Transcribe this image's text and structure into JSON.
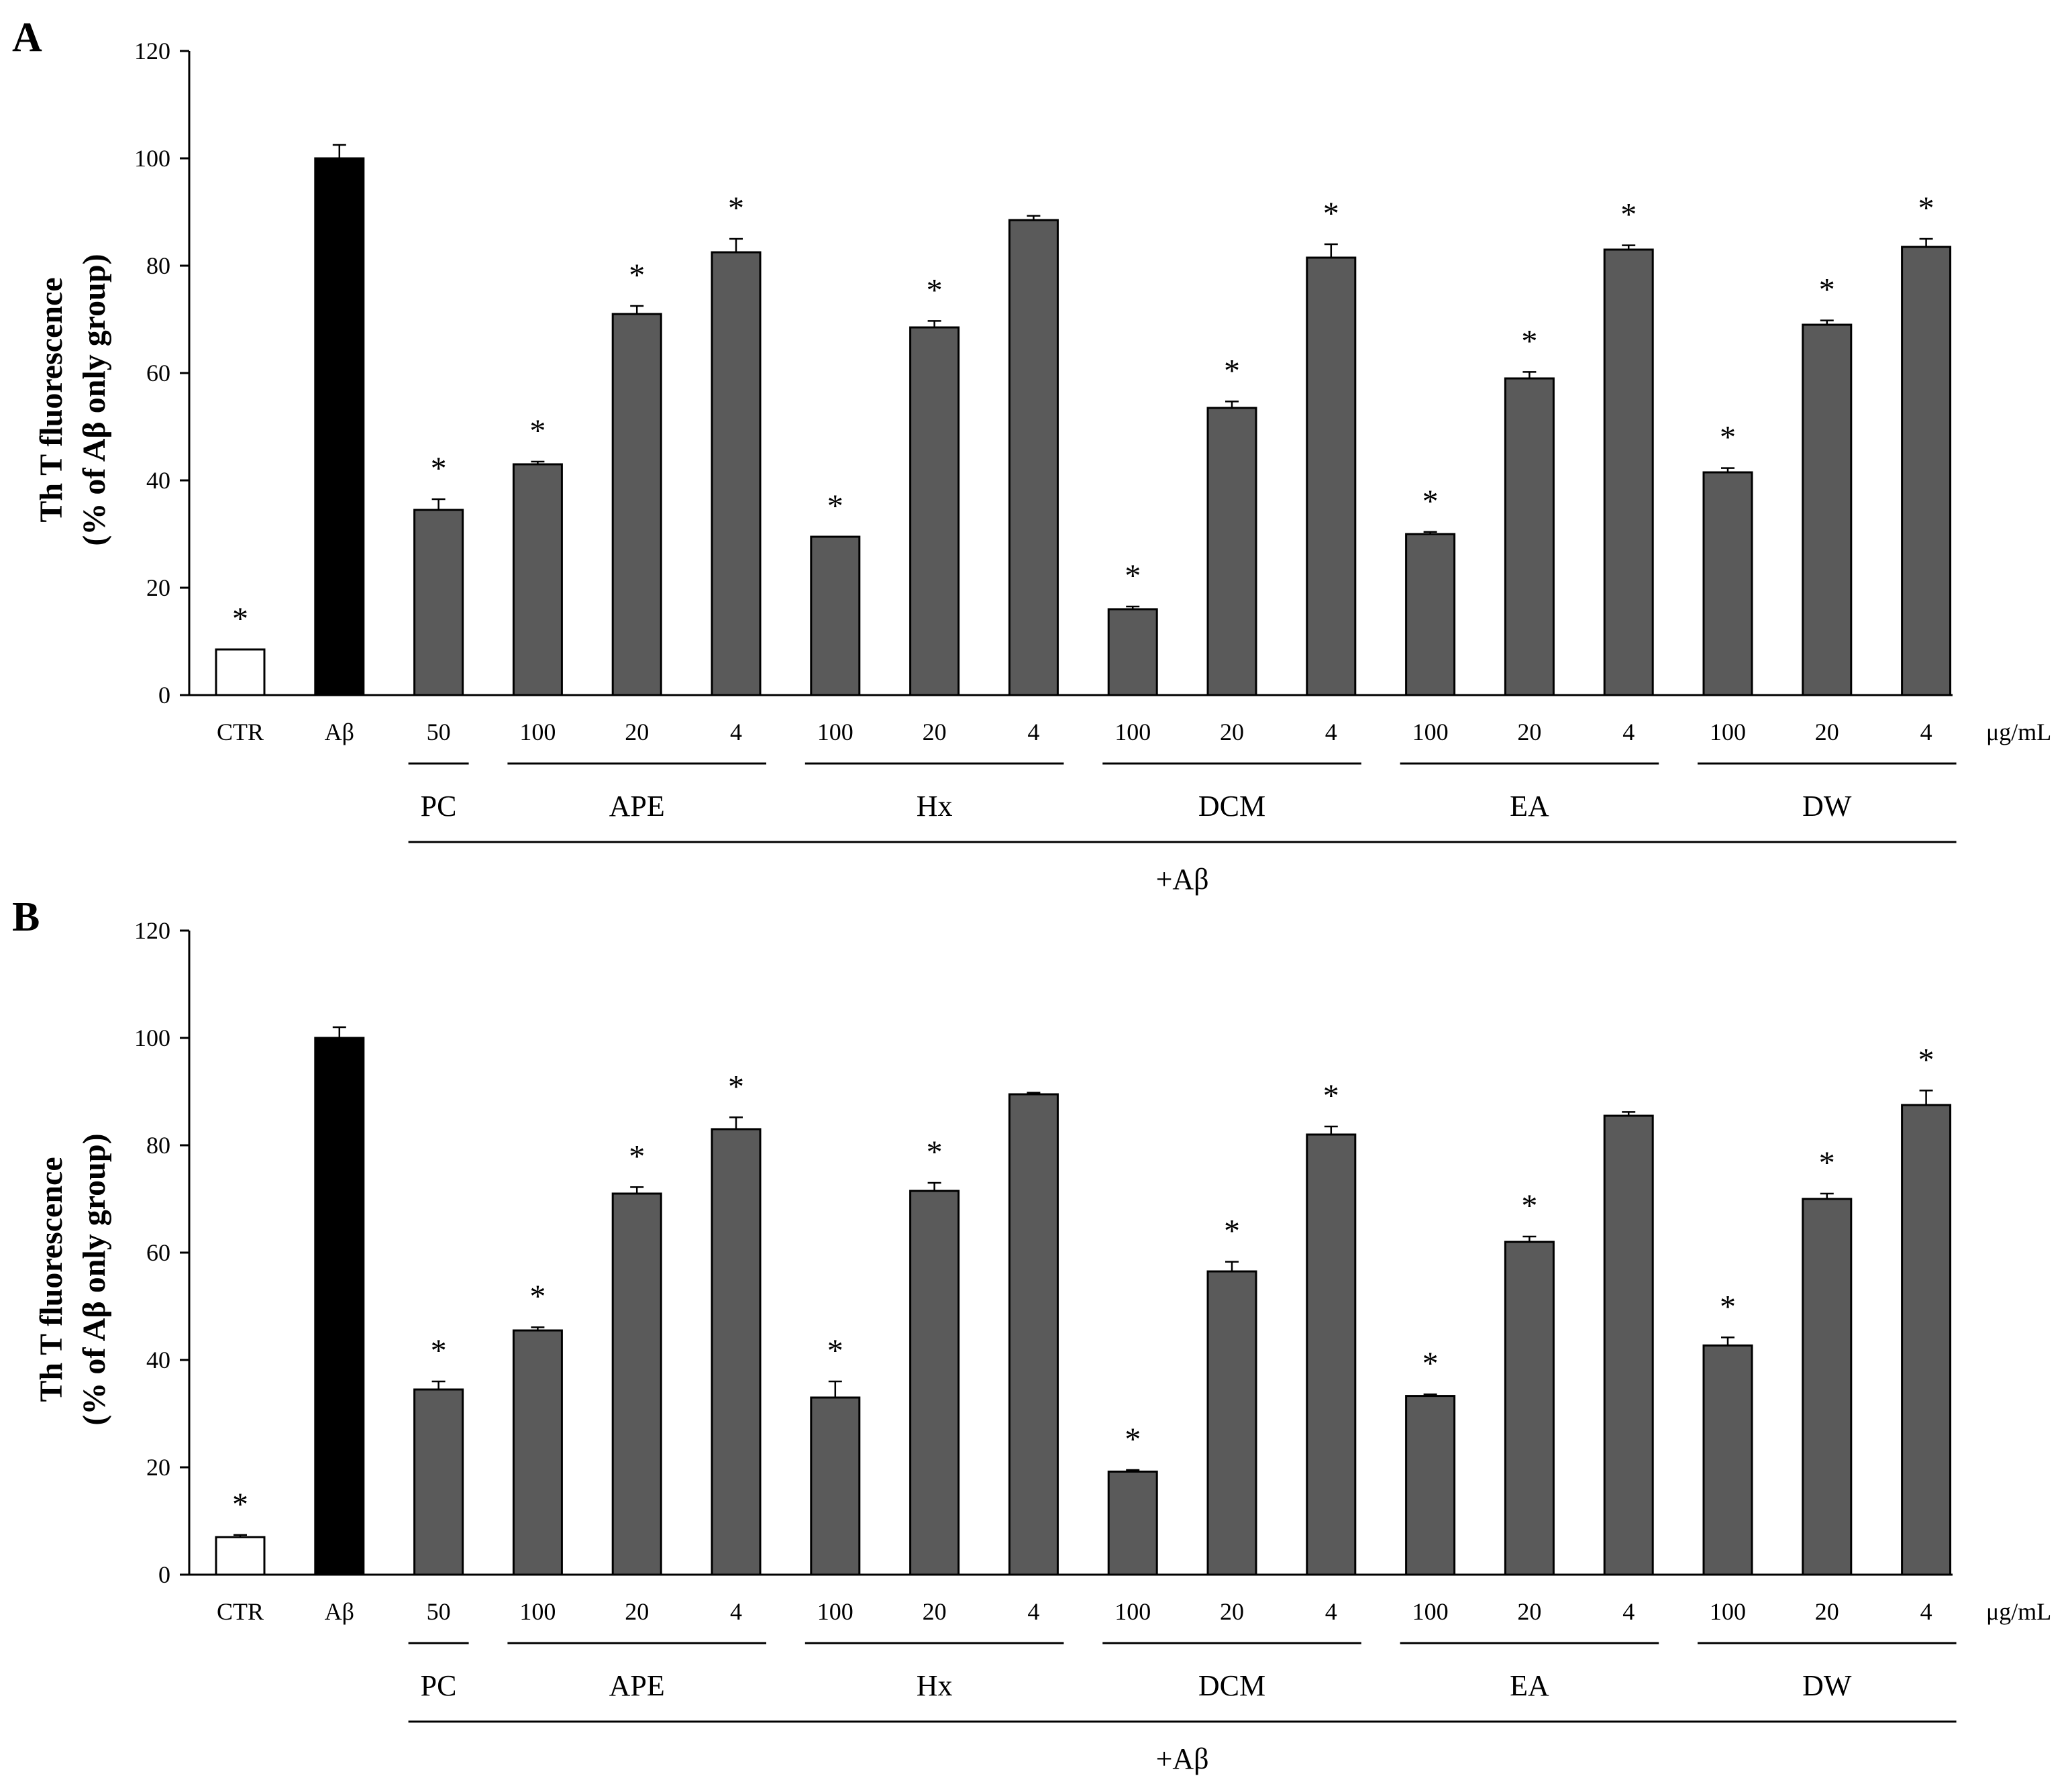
{
  "chart_data": [
    {
      "panel": "A",
      "type": "bar",
      "ylabel_line1": "Th T fluorescence",
      "ylabel_line2": "(% of Aβ only group)",
      "ylim": [
        0,
        120
      ],
      "yticks": [
        0,
        20,
        40,
        60,
        80,
        100,
        120
      ],
      "grid": false,
      "unit_label": "μg/mL",
      "categories": [
        "CTR",
        "Aβ",
        "50",
        "100",
        "20",
        "4",
        "100",
        "20",
        "4",
        "100",
        "20",
        "4",
        "100",
        "20",
        "4",
        "100",
        "20",
        "4"
      ],
      "values": [
        8.5,
        100,
        34.5,
        43,
        71,
        82.5,
        29.5,
        68.5,
        88.5,
        16,
        53.5,
        81.5,
        30,
        59,
        83,
        41.5,
        69,
        83.5
      ],
      "errors": [
        0,
        2.5,
        2,
        0.5,
        1.5,
        2.5,
        0,
        1.2,
        0.8,
        0.5,
        1.2,
        2.5,
        0.4,
        1.2,
        0.8,
        0.8,
        0.8,
        1.5
      ],
      "bar_colors": [
        "#ffffff",
        "#000000",
        "#5a5a5a",
        "#5a5a5a",
        "#5a5a5a",
        "#5a5a5a",
        "#5a5a5a",
        "#5a5a5a",
        "#5a5a5a",
        "#5a5a5a",
        "#5a5a5a",
        "#5a5a5a",
        "#5a5a5a",
        "#5a5a5a",
        "#5a5a5a",
        "#5a5a5a",
        "#5a5a5a",
        "#5a5a5a"
      ],
      "significance": [
        true,
        false,
        true,
        true,
        true,
        true,
        true,
        true,
        false,
        true,
        true,
        true,
        true,
        true,
        true,
        true,
        true,
        true
      ],
      "significance_mark": "*",
      "groups": [
        {
          "label": "PC",
          "start": 2,
          "end": 2
        },
        {
          "label": "APE",
          "start": 3,
          "end": 5
        },
        {
          "label": "Hx",
          "start": 6,
          "end": 8
        },
        {
          "label": "DCM",
          "start": 9,
          "end": 11
        },
        {
          "label": "EA",
          "start": 12,
          "end": 14
        },
        {
          "label": "DW",
          "start": 15,
          "end": 17
        }
      ],
      "treatment_label": "+Aβ"
    },
    {
      "panel": "B",
      "type": "bar",
      "ylabel_line1": "Th T fluorescence",
      "ylabel_line2": "(% of Aβ only group)",
      "ylim": [
        0,
        120
      ],
      "yticks": [
        0,
        20,
        40,
        60,
        80,
        100,
        120
      ],
      "grid": false,
      "unit_label": "μg/mL",
      "categories": [
        "CTR",
        "Aβ",
        "50",
        "100",
        "20",
        "4",
        "100",
        "20",
        "4",
        "100",
        "20",
        "4",
        "100",
        "20",
        "4",
        "100",
        "20",
        "4"
      ],
      "values": [
        7,
        100,
        34.5,
        45.5,
        71,
        83,
        33,
        71.5,
        89.5,
        19.2,
        56.5,
        82,
        33.3,
        62,
        85.5,
        42.7,
        70,
        87.5
      ],
      "errors": [
        0.4,
        2,
        1.5,
        0.6,
        1.2,
        2.2,
        3,
        1.5,
        0.3,
        0.3,
        1.8,
        1.5,
        0.3,
        1,
        0.7,
        1.5,
        1,
        2.7
      ],
      "bar_colors": [
        "#ffffff",
        "#000000",
        "#5a5a5a",
        "#5a5a5a",
        "#5a5a5a",
        "#5a5a5a",
        "#5a5a5a",
        "#5a5a5a",
        "#5a5a5a",
        "#5a5a5a",
        "#5a5a5a",
        "#5a5a5a",
        "#5a5a5a",
        "#5a5a5a",
        "#5a5a5a",
        "#5a5a5a",
        "#5a5a5a",
        "#5a5a5a"
      ],
      "significance": [
        true,
        false,
        true,
        true,
        true,
        true,
        true,
        true,
        false,
        true,
        true,
        true,
        true,
        true,
        false,
        true,
        true,
        true
      ],
      "significance_mark": "*",
      "groups": [
        {
          "label": "PC",
          "start": 2,
          "end": 2
        },
        {
          "label": "APE",
          "start": 3,
          "end": 5
        },
        {
          "label": "Hx",
          "start": 6,
          "end": 8
        },
        {
          "label": "DCM",
          "start": 9,
          "end": 11
        },
        {
          "label": "EA",
          "start": 12,
          "end": 14
        },
        {
          "label": "DW",
          "start": 15,
          "end": 17
        }
      ],
      "treatment_label": "+Aβ"
    }
  ]
}
